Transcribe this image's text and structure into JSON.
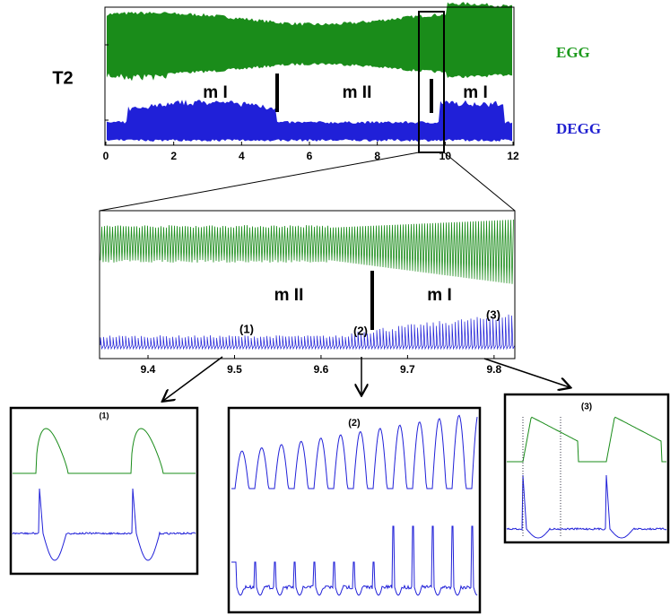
{
  "top_plot": {
    "label": "T2",
    "egg_label": "EGG",
    "degg_label": "DEGG",
    "regions": [
      "m I",
      "m II",
      "m I"
    ],
    "xlim": [
      0,
      12
    ],
    "xticks": [
      0,
      2,
      4,
      6,
      8,
      10,
      12
    ]
  },
  "zoom_plot": {
    "regions": [
      "m II",
      "m I"
    ],
    "markers": [
      "(1)",
      "(2)",
      "(3)"
    ],
    "xlim": [
      9.344,
      9.824
    ],
    "xticks": [
      9.4,
      9.5,
      9.6,
      9.7,
      9.8
    ]
  },
  "insets": [
    {
      "label": "(1)"
    },
    {
      "label": "(2)"
    },
    {
      "label": "(3)"
    }
  ]
}
